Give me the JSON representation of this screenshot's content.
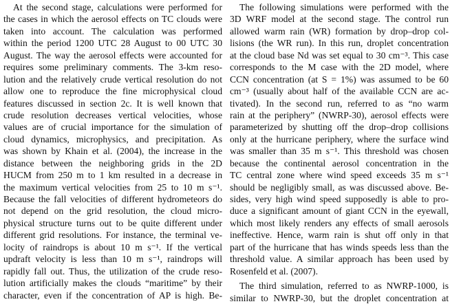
{
  "left_column": [
    {
      "text": "At the second stage, calculations were performed for",
      "indent": true
    },
    {
      "text": "the cases in which the aerosol effects on TC clouds were"
    },
    {
      "text": "taken into account. The calculation was performed"
    },
    {
      "text": "within the period 1200 UTC 28 August to 00 UTC 30"
    },
    {
      "text": "August. The way the aerosol effects were accounted for"
    },
    {
      "text": "requires some preliminary comments. The 3-km reso-"
    },
    {
      "text": "lution and the relatively crude vertical resolution do not"
    },
    {
      "text": "allow one to reproduce the fine microphysical cloud"
    },
    {
      "text": "features discussed in section 2c. It is well known that"
    },
    {
      "text": "crude resolution decreases vertical velocities, whose"
    },
    {
      "text": "values are of crucial importance for the simulation of"
    },
    {
      "text": "cloud dynamics, microphysics, and precipitation. As"
    },
    {
      "text": "was shown by Khain et al. (2004), the increase in the"
    },
    {
      "text": "distance between the neighboring grids in the 2D"
    },
    {
      "text": "HUCM from 250 m to 1 km resulted in a decrease in"
    },
    {
      "text": "the maximum vertical velocities from 25 to 10 m s⁻¹."
    },
    {
      "text": "Because the fall velocities of different hydrometeors do"
    },
    {
      "text": "not depend on the grid resolution, the cloud micro-"
    },
    {
      "text": "physical structure turns out to be quite different under"
    },
    {
      "text": "different grid resolutions. For instance, the terminal ve-"
    },
    {
      "text": "locity of raindrops is about 10 m s⁻¹. If the vertical"
    },
    {
      "text": "updraft velocity is less than 10 m s⁻¹, raindrops will"
    },
    {
      "text": "rapidly fall out. Thus, the utilization of the crude reso-"
    },
    {
      "text": "lution artificially makes the clouds “maritime” by their"
    },
    {
      "text": "character, even if the concentration of AP is high. Be-"
    }
  ],
  "right_column": [
    {
      "text": "The following simulations were performed with the",
      "indent": true
    },
    {
      "text": "3D WRF model at the second stage. The control run"
    },
    {
      "text": "allowed warm rain (WR) formation by drop–drop col-"
    },
    {
      "text": "lisions (the WR run). In this run, droplet concentration"
    },
    {
      "text": "at the cloud base Nd was set equal to 30 cm⁻³. This case"
    },
    {
      "text": "corresponds to the M case with the 2D model, where"
    },
    {
      "text": "CCN concentration (at S = 1%) was assumed to be 60"
    },
    {
      "text": "cm⁻³ (usually about half of the available CCN are ac-"
    },
    {
      "text": "tivated). In the second run, referred to as “no warm"
    },
    {
      "text": "rain at the periphery” (NWRP-30), aerosol effects were"
    },
    {
      "text": "parameterized by shutting off the drop–drop collisions"
    },
    {
      "text": "only at the hurricane periphery, where the surface wind"
    },
    {
      "text": "was smaller than 35 m s⁻¹. This threshold was chosen"
    },
    {
      "text": "because the continental aerosol concentration in the"
    },
    {
      "text": "TC central zone where wind speed exceeds 35 m s⁻¹"
    },
    {
      "text": "should be negligibly small, as was discussed above. Be-"
    },
    {
      "text": "sides, very high wind speed supposedly is able to pro-"
    },
    {
      "text": "duce a significant amount of giant CCN in the eyewall,"
    },
    {
      "text": "which most likely renders any effects of small aerosols"
    },
    {
      "text": "ineffective. Hence, warm rain is shut off only in that"
    },
    {
      "text": "part of the hurricane that has winds speeds less than the"
    },
    {
      "text": "threshold value. A similar approach has been used by"
    },
    {
      "text": "Rosenfeld et al. (2007).",
      "last": true,
      "gap_after": true
    },
    {
      "text": "The third simulation, referred to as NWRP-1000, is",
      "indent": true
    },
    {
      "text": "similar to NWRP-30, but the droplet concentration at"
    }
  ]
}
